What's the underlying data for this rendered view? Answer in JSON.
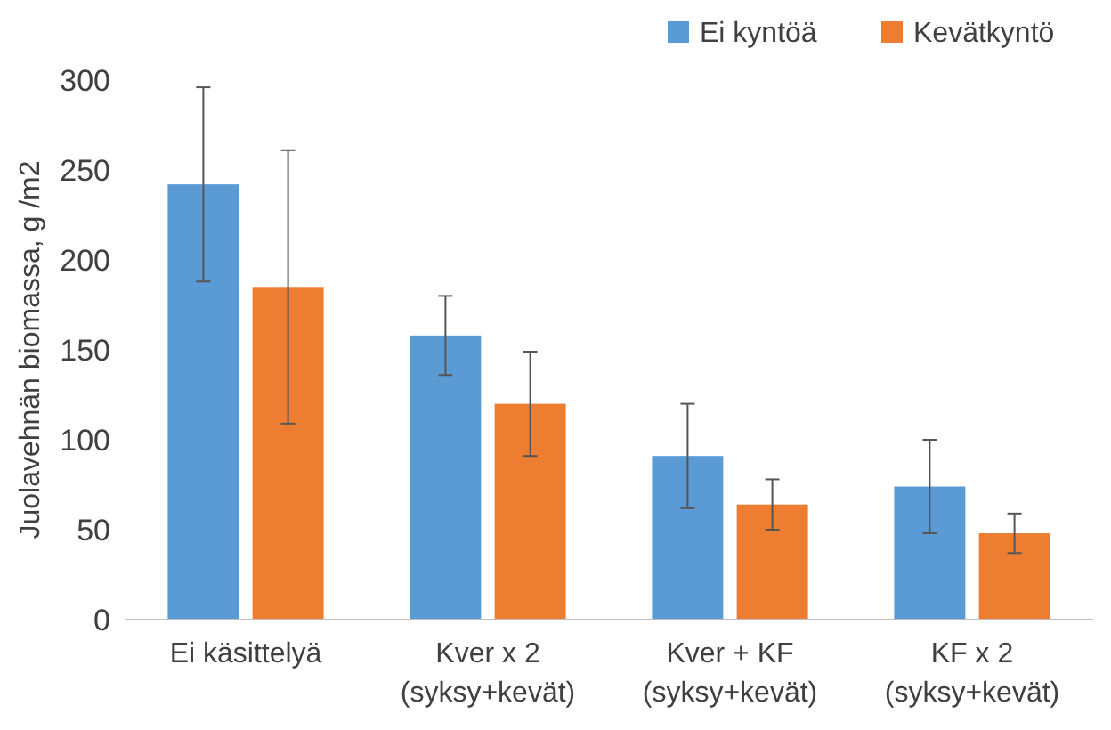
{
  "chart_data": {
    "type": "bar",
    "ylabel": "Juolavehnän biomassa, g /m2",
    "categories": [
      "Ei käsittelyä",
      "Kver x 2\n(syksy+kevät)",
      "Kver + KF\n(syksy+kevät)",
      "KF x 2\n(syksy+kevät)"
    ],
    "series": [
      {
        "name": "Ei kyntöä",
        "color": "#5b9bd5",
        "values": [
          242,
          158,
          91,
          74
        ],
        "errors": [
          54,
          22,
          29,
          26
        ]
      },
      {
        "name": "Kevätkyntö",
        "color": "#ed7d31",
        "values": [
          185,
          120,
          64,
          48
        ],
        "errors": [
          76,
          29,
          14,
          11
        ]
      }
    ],
    "ylim": [
      0,
      300
    ],
    "yticks": [
      0,
      50,
      100,
      150,
      200,
      250,
      300
    ],
    "grid": false,
    "legend": "top right"
  }
}
